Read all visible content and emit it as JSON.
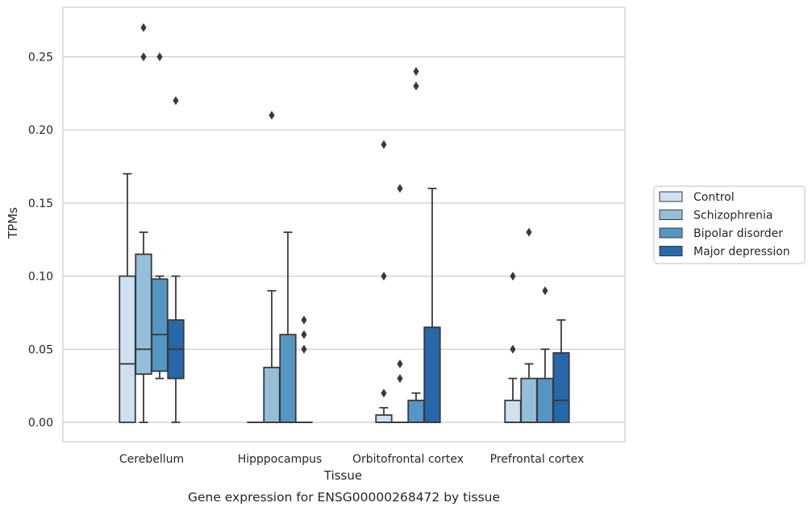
{
  "chart_data": {
    "type": "box",
    "title": "",
    "caption": "Gene expression for ENSG00000268472 by tissue",
    "xlabel": "Tissue",
    "ylabel": "TPMs",
    "ylim": [
      -0.013,
      0.285
    ],
    "yticks": [
      0.0,
      0.05,
      0.1,
      0.15,
      0.2,
      0.25
    ],
    "ytick_labels": [
      "0.00",
      "0.05",
      "0.10",
      "0.15",
      "0.20",
      "0.25"
    ],
    "grid": "horizontal",
    "legend_position": "right",
    "categories": [
      "Cerebellum",
      "Hipppocampus",
      "Orbitofrontal cortex",
      "Prefrontal cortex"
    ],
    "series": [
      {
        "name": "Control",
        "color": "#cfe0f0",
        "boxes": [
          {
            "whislo": 0.0,
            "q1": 0.0,
            "med": 0.04,
            "q3": 0.1,
            "whishi": 0.17,
            "fliers": []
          },
          {
            "whislo": 0.0,
            "q1": 0.0,
            "med": 0.0,
            "q3": 0.0,
            "whishi": 0.0,
            "fliers": []
          },
          {
            "whislo": 0.0,
            "q1": 0.0,
            "med": 0.0,
            "q3": 0.005,
            "whishi": 0.01,
            "fliers": [
              0.02,
              0.1,
              0.19
            ]
          },
          {
            "whislo": 0.0,
            "q1": 0.0,
            "med": 0.0,
            "q3": 0.015,
            "whishi": 0.03,
            "fliers": [
              0.05,
              0.1
            ]
          }
        ]
      },
      {
        "name": "Schizophrenia",
        "color": "#94bfda",
        "boxes": [
          {
            "whislo": 0.0,
            "q1": 0.033,
            "med": 0.05,
            "q3": 0.115,
            "whishi": 0.13,
            "fliers": [
              0.25,
              0.27
            ]
          },
          {
            "whislo": 0.0,
            "q1": 0.0,
            "med": 0.0,
            "q3": 0.0375,
            "whishi": 0.09,
            "fliers": [
              0.21
            ]
          },
          {
            "whislo": 0.0,
            "q1": 0.0,
            "med": 0.0,
            "q3": 0.0,
            "whishi": 0.0,
            "fliers": [
              0.03,
              0.04,
              0.16
            ]
          },
          {
            "whislo": 0.0,
            "q1": 0.0,
            "med": 0.0,
            "q3": 0.03,
            "whishi": 0.04,
            "fliers": [
              0.13
            ]
          }
        ]
      },
      {
        "name": "Bipolar disorder",
        "color": "#5596c4",
        "boxes": [
          {
            "whislo": 0.03,
            "q1": 0.035,
            "med": 0.06,
            "q3": 0.098,
            "whishi": 0.1,
            "fliers": [
              0.25
            ]
          },
          {
            "whislo": 0.0,
            "q1": 0.0,
            "med": 0.0,
            "q3": 0.06,
            "whishi": 0.13,
            "fliers": []
          },
          {
            "whislo": 0.0,
            "q1": 0.0,
            "med": 0.0,
            "q3": 0.015,
            "whishi": 0.02,
            "fliers": [
              0.23,
              0.24
            ]
          },
          {
            "whislo": 0.0,
            "q1": 0.0,
            "med": 0.0,
            "q3": 0.03,
            "whishi": 0.05,
            "fliers": [
              0.09
            ]
          }
        ]
      },
      {
        "name": "Major depression",
        "color": "#2668a8",
        "boxes": [
          {
            "whislo": 0.0,
            "q1": 0.03,
            "med": 0.05,
            "q3": 0.07,
            "whishi": 0.1,
            "fliers": [
              0.22
            ]
          },
          {
            "whislo": 0.0,
            "q1": 0.0,
            "med": 0.0,
            "q3": 0.0,
            "whishi": 0.0,
            "fliers": [
              0.05,
              0.06,
              0.07
            ]
          },
          {
            "whislo": 0.0,
            "q1": 0.0,
            "med": 0.0,
            "q3": 0.065,
            "whishi": 0.16,
            "fliers": []
          },
          {
            "whislo": 0.0,
            "q1": 0.0,
            "med": 0.015,
            "q3": 0.0475,
            "whishi": 0.07,
            "fliers": []
          }
        ]
      }
    ]
  }
}
